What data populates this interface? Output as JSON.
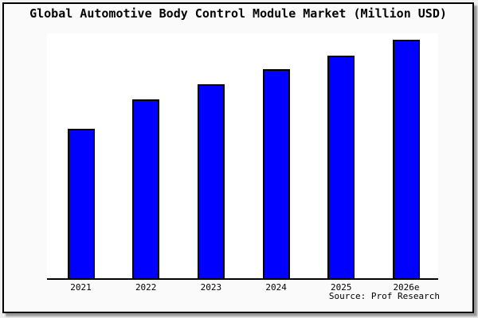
{
  "header": {
    "title": "Global Automotive Body Control Module Market (Million USD)"
  },
  "footer": {
    "source_label": "Source: Prof Research"
  },
  "colors": {
    "bar_fill": "#0000ff",
    "bar_border": "#000000",
    "plot_background": "#ffffff",
    "frame_background": "#fafafa",
    "page_background": "#f0f0f0",
    "text": "#000000"
  },
  "chart_data": {
    "type": "bar",
    "title": "Global Automotive Body Control Module Market (Million USD)",
    "categories": [
      "2021",
      "2022",
      "2023",
      "2024",
      "2025",
      "2026e"
    ],
    "values": [
      188,
      225,
      244,
      263,
      280,
      300
    ],
    "units": "relative height (y-axis unlabeled in source image)",
    "xlabel": "",
    "ylabel": "",
    "ylim": [
      0,
      308
    ],
    "grid": false,
    "legend": false,
    "bar_color": "#0000ff",
    "bar_border_color": "#000000",
    "annotations": [
      "Source: Prof Research"
    ]
  }
}
